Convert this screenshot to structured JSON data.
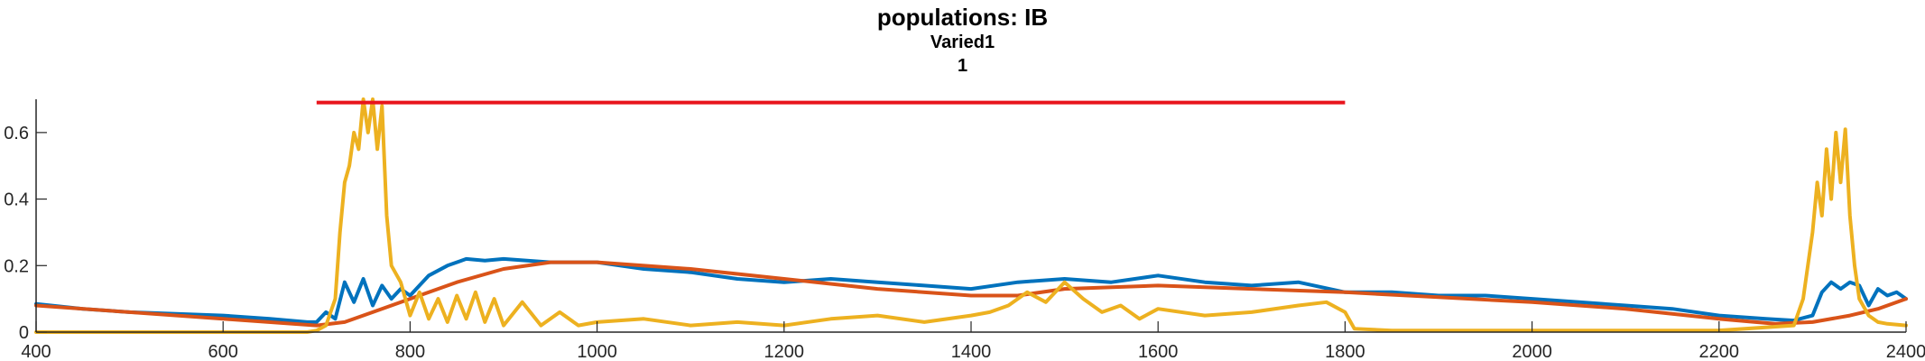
{
  "chart_data": {
    "type": "line",
    "title": "populations: IB",
    "subtitle": "Varied1",
    "subtitle2": "1",
    "xlabel": "",
    "ylabel": "",
    "xlim": [
      400,
      2400
    ],
    "ylim": [
      0,
      0.7
    ],
    "xticks": [
      400,
      600,
      800,
      1000,
      1200,
      1400,
      1600,
      1800,
      2000,
      2200,
      2400
    ],
    "xtick_labels": [
      "400",
      "600",
      "800",
      "1000",
      "1200",
      "1400",
      "1600",
      "1800",
      "2000",
      "2200",
      "2400"
    ],
    "yticks": [
      0,
      0.2,
      0.4,
      0.6
    ],
    "ytick_labels": [
      "0",
      "0.2",
      "0.4",
      "0.6"
    ],
    "grid": false,
    "legend": "none",
    "stimulus": {
      "x": [
        700,
        1800
      ],
      "y": 0.69,
      "color": "#e8141c"
    },
    "series": [
      {
        "color": "#0072bd",
        "x": [
          400,
          450,
          500,
          550,
          600,
          650,
          690,
          700,
          710,
          720,
          730,
          740,
          750,
          760,
          770,
          780,
          790,
          800,
          820,
          840,
          860,
          880,
          900,
          950,
          1000,
          1050,
          1100,
          1150,
          1200,
          1250,
          1300,
          1350,
          1400,
          1450,
          1500,
          1550,
          1600,
          1650,
          1700,
          1750,
          1800,
          1850,
          1900,
          1950,
          2000,
          2050,
          2100,
          2150,
          2200,
          2250,
          2280,
          2300,
          2310,
          2320,
          2330,
          2340,
          2350,
          2360,
          2370,
          2380,
          2390,
          2400
        ],
        "y": [
          0.085,
          0.07,
          0.06,
          0.055,
          0.05,
          0.04,
          0.03,
          0.03,
          0.06,
          0.04,
          0.15,
          0.09,
          0.16,
          0.08,
          0.14,
          0.1,
          0.13,
          0.11,
          0.17,
          0.2,
          0.22,
          0.215,
          0.22,
          0.21,
          0.21,
          0.19,
          0.18,
          0.16,
          0.15,
          0.16,
          0.15,
          0.14,
          0.13,
          0.15,
          0.16,
          0.15,
          0.17,
          0.15,
          0.14,
          0.15,
          0.12,
          0.12,
          0.11,
          0.11,
          0.1,
          0.09,
          0.08,
          0.07,
          0.05,
          0.04,
          0.035,
          0.05,
          0.12,
          0.15,
          0.13,
          0.15,
          0.14,
          0.08,
          0.13,
          0.11,
          0.12,
          0.1
        ]
      },
      {
        "color": "#d95319",
        "x": [
          400,
          500,
          600,
          700,
          730,
          760,
          800,
          850,
          900,
          950,
          1000,
          1100,
          1200,
          1300,
          1400,
          1450,
          1500,
          1600,
          1700,
          1800,
          1900,
          2000,
          2100,
          2200,
          2260,
          2300,
          2340,
          2370,
          2400
        ],
        "y": [
          0.08,
          0.06,
          0.04,
          0.02,
          0.03,
          0.06,
          0.1,
          0.15,
          0.19,
          0.21,
          0.21,
          0.19,
          0.16,
          0.13,
          0.11,
          0.11,
          0.13,
          0.14,
          0.13,
          0.12,
          0.105,
          0.09,
          0.07,
          0.04,
          0.025,
          0.03,
          0.05,
          0.07,
          0.1
        ]
      },
      {
        "color": "#edb120",
        "x": [
          400,
          600,
          690,
          700,
          710,
          720,
          725,
          730,
          735,
          740,
          745,
          750,
          755,
          760,
          765,
          770,
          775,
          780,
          790,
          800,
          810,
          820,
          830,
          840,
          850,
          860,
          870,
          880,
          890,
          900,
          920,
          940,
          960,
          980,
          1000,
          1050,
          1100,
          1150,
          1200,
          1250,
          1300,
          1350,
          1400,
          1420,
          1440,
          1460,
          1480,
          1500,
          1520,
          1540,
          1560,
          1580,
          1600,
          1650,
          1700,
          1750,
          1780,
          1800,
          1810,
          1850,
          1900,
          2000,
          2100,
          2200,
          2280,
          2290,
          2300,
          2305,
          2310,
          2315,
          2320,
          2325,
          2330,
          2335,
          2340,
          2345,
          2350,
          2360,
          2370,
          2380,
          2400
        ],
        "y": [
          0.0,
          0.0,
          0.0,
          0.005,
          0.02,
          0.1,
          0.3,
          0.45,
          0.5,
          0.6,
          0.55,
          0.7,
          0.6,
          0.7,
          0.55,
          0.68,
          0.35,
          0.2,
          0.15,
          0.05,
          0.12,
          0.04,
          0.1,
          0.03,
          0.11,
          0.04,
          0.12,
          0.03,
          0.1,
          0.02,
          0.09,
          0.02,
          0.06,
          0.02,
          0.03,
          0.04,
          0.02,
          0.03,
          0.02,
          0.04,
          0.05,
          0.03,
          0.05,
          0.06,
          0.08,
          0.12,
          0.09,
          0.15,
          0.1,
          0.06,
          0.08,
          0.04,
          0.07,
          0.05,
          0.06,
          0.08,
          0.09,
          0.06,
          0.01,
          0.005,
          0.005,
          0.005,
          0.005,
          0.005,
          0.02,
          0.1,
          0.3,
          0.45,
          0.35,
          0.55,
          0.4,
          0.6,
          0.45,
          0.61,
          0.35,
          0.2,
          0.1,
          0.05,
          0.03,
          0.025,
          0.02
        ]
      }
    ]
  }
}
